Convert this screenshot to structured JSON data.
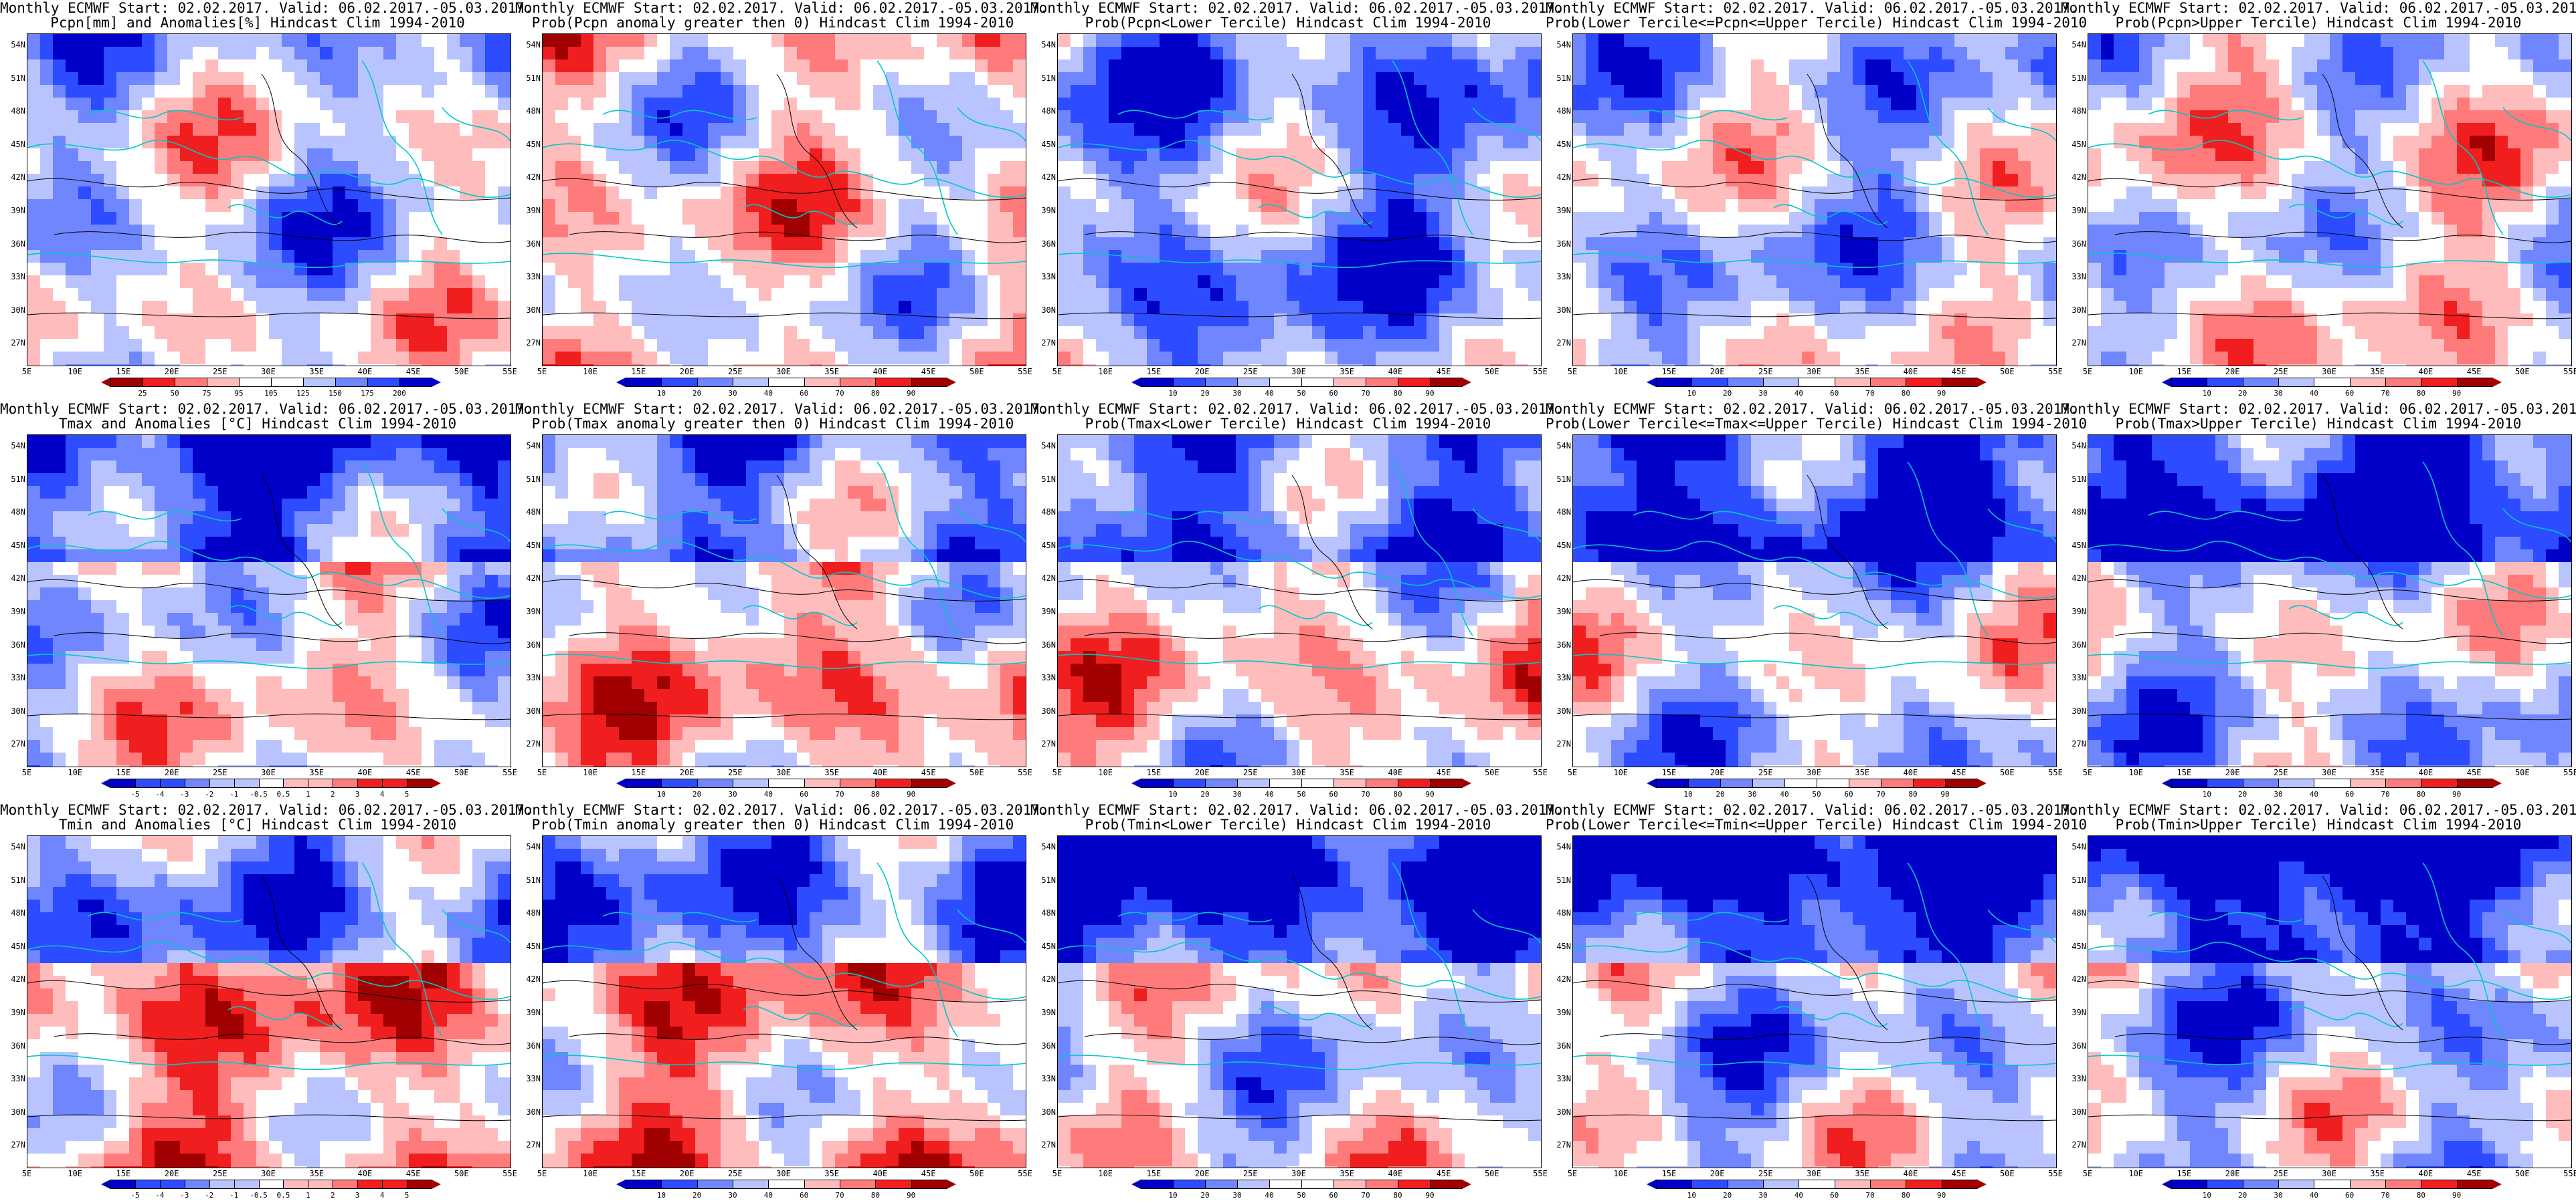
{
  "figure": {
    "panels": [
      {
        "title_line1": "Monthly ECMWF Start: 02.02.2017. Valid: 06.02.2017.-05.03.2017.",
        "title_line2": "Pcpn[mm] and Anomalies[%] Hindcast Clim 1994-2010",
        "scale": "pcpn-anom",
        "colorbar_labels": [
          "25",
          "50",
          "75",
          "95",
          "105",
          "125",
          "150",
          "175",
          "200"
        ]
      },
      {
        "title_line1": "Monthly ECMWF Start: 02.02.2017. Valid: 06.02.2017.-05.03.2017.",
        "title_line2": "Prob(Pcpn anomaly greater then 0) Hindcast Clim 1994-2010",
        "scale": "prob-wet",
        "colorbar_labels": [
          "10",
          "20",
          "30",
          "40",
          "60",
          "70",
          "80",
          "90"
        ]
      },
      {
        "title_line1": "Monthly ECMWF Start: 02.02.2017. Valid: 06.02.2017.-05.03.2017.",
        "title_line2": "Prob(Pcpn<Lower Tercile) Hindcast Clim 1994-2010",
        "scale": "prob-dry",
        "colorbar_labels": [
          "10",
          "20",
          "30",
          "40",
          "50",
          "60",
          "70",
          "80",
          "90"
        ]
      },
      {
        "title_line1": "Monthly ECMWF Start: 02.02.2017. Valid: 06.02.2017.-05.03.2017.",
        "title_line2": "Prob(Lower Tercile<=Pcpn<=Upper Tercile) Hindcast Clim 1994-2010",
        "scale": "prob-normal",
        "colorbar_labels": [
          "10",
          "20",
          "30",
          "40",
          "60",
          "70",
          "80",
          "90"
        ]
      },
      {
        "title_line1": "Monthly ECMWF Start: 02.02.2017. Valid: 06.02.2017.-05.03.2017.",
        "title_line2": "Prob(Pcpn>Upper Tercile) Hindcast Clim 1994-2010",
        "scale": "prob-wet",
        "colorbar_labels": [
          "10",
          "20",
          "30",
          "40",
          "60",
          "70",
          "80",
          "90"
        ]
      },
      {
        "title_line1": "Monthly ECMWF Start: 02.02.2017. Valid: 06.02.2017.-05.03.2017.",
        "title_line2": "Tmax and Anomalies [°C] Hindcast Clim 1994-2010",
        "scale": "temp-anom",
        "colorbar_labels": [
          "-5",
          "-4",
          "-3",
          "-2",
          "-1",
          "-0.5",
          "0.5",
          "1",
          "2",
          "3",
          "4",
          "5"
        ]
      },
      {
        "title_line1": "Monthly ECMWF Start: 02.02.2017. Valid: 06.02.2017.-05.03.2017.",
        "title_line2": "Prob(Tmax anomaly greater then 0) Hindcast Clim 1994-2010",
        "scale": "temp-warm",
        "colorbar_labels": [
          "10",
          "20",
          "30",
          "40",
          "60",
          "70",
          "80",
          "90"
        ]
      },
      {
        "title_line1": "Monthly ECMWF Start: 02.02.2017. Valid: 06.02.2017.-05.03.2017.",
        "title_line2": "Prob(Tmax<Lower Tercile) Hindcast Clim 1994-2010",
        "scale": "temp-cold",
        "colorbar_labels": [
          "10",
          "20",
          "30",
          "40",
          "50",
          "60",
          "70",
          "80",
          "90"
        ]
      },
      {
        "title_line1": "Monthly ECMWF Start: 02.02.2017. Valid: 06.02.2017.-05.03.2017.",
        "title_line2": "Prob(Lower Tercile<=Tmax<=Upper Tercile) Hindcast Clim 1994-2010",
        "scale": "prob-normal",
        "colorbar_labels": [
          "10",
          "20",
          "30",
          "40",
          "50",
          "60",
          "70",
          "80",
          "90"
        ]
      },
      {
        "title_line1": "Monthly ECMWF Start: 02.02.2017. Valid: 06.02.2017.-05.03.2017.",
        "title_line2": "Prob(Tmax>Upper Tercile) Hindcast Clim 1994-2010",
        "scale": "prob-coolish",
        "colorbar_labels": [
          "10",
          "20",
          "30",
          "40",
          "60",
          "70",
          "80",
          "90"
        ]
      },
      {
        "title_line1": "Monthly ECMWF Start: 02.02.2017. Valid: 06.02.2017.-05.03.2017.",
        "title_line2": "Tmin and Anomalies [°C] Hindcast Clim 1994-2010",
        "scale": "temp-warm",
        "colorbar_labels": [
          "-5",
          "-4",
          "-3",
          "-2",
          "-1",
          "-0.5",
          "0.5",
          "1",
          "2",
          "3",
          "4",
          "5"
        ]
      },
      {
        "title_line1": "Monthly ECMWF Start: 02.02.2017. Valid: 06.02.2017.-05.03.2017.",
        "title_line2": "Prob(Tmin anomaly greater then 0) Hindcast Clim 1994-2010",
        "scale": "temp-warm",
        "colorbar_labels": [
          "10",
          "20",
          "30",
          "40",
          "60",
          "70",
          "80",
          "90"
        ]
      },
      {
        "title_line1": "Monthly ECMWF Start: 02.02.2017. Valid: 06.02.2017.-05.03.2017.",
        "title_line2": "Prob(Tmin<Lower Tercile) Hindcast Clim 1994-2010",
        "scale": "temp-cold",
        "colorbar_labels": [
          "10",
          "20",
          "30",
          "40",
          "50",
          "60",
          "70",
          "80",
          "90"
        ]
      },
      {
        "title_line1": "Monthly ECMWF Start: 02.02.2017. Valid: 06.02.2017.-05.03.2017.",
        "title_line2": "Prob(Lower Tercile<=Tmin<=Upper Tercile) Hindcast Clim 1994-2010",
        "scale": "prob-normal",
        "colorbar_labels": [
          "10",
          "20",
          "30",
          "40",
          "60",
          "70",
          "80",
          "90"
        ]
      },
      {
        "title_line1": "Monthly ECMWF Start: 02.02.2017. Valid: 06.02.2017.-05.03.2017.",
        "title_line2": "Prob(Tmin>Upper Tercile) Hindcast Clim 1994-2010",
        "scale": "prob-coolish",
        "colorbar_labels": [
          "10",
          "20",
          "30",
          "40",
          "60",
          "70",
          "80",
          "90"
        ]
      }
    ],
    "lat_labels": [
      "54N",
      "51N",
      "48N",
      "45N",
      "42N",
      "39N",
      "36N",
      "33N",
      "30N",
      "27N"
    ],
    "lon_labels": [
      "5E",
      "10E",
      "15E",
      "20E",
      "25E",
      "30E",
      "35E",
      "40E",
      "45E",
      "50E",
      "55E"
    ],
    "colors": {
      "blue_dark": "#0000c8",
      "blue": "#2d4bff",
      "blue_mid": "#6f86ff",
      "blue_light": "#b9c4ff",
      "white": "#ffffff",
      "red_light": "#ffbcbc",
      "red_mid": "#ff7b7b",
      "red": "#f01e1e",
      "red_dark": "#a00000",
      "coast": "#00c8c8",
      "contour": "#000000"
    }
  }
}
